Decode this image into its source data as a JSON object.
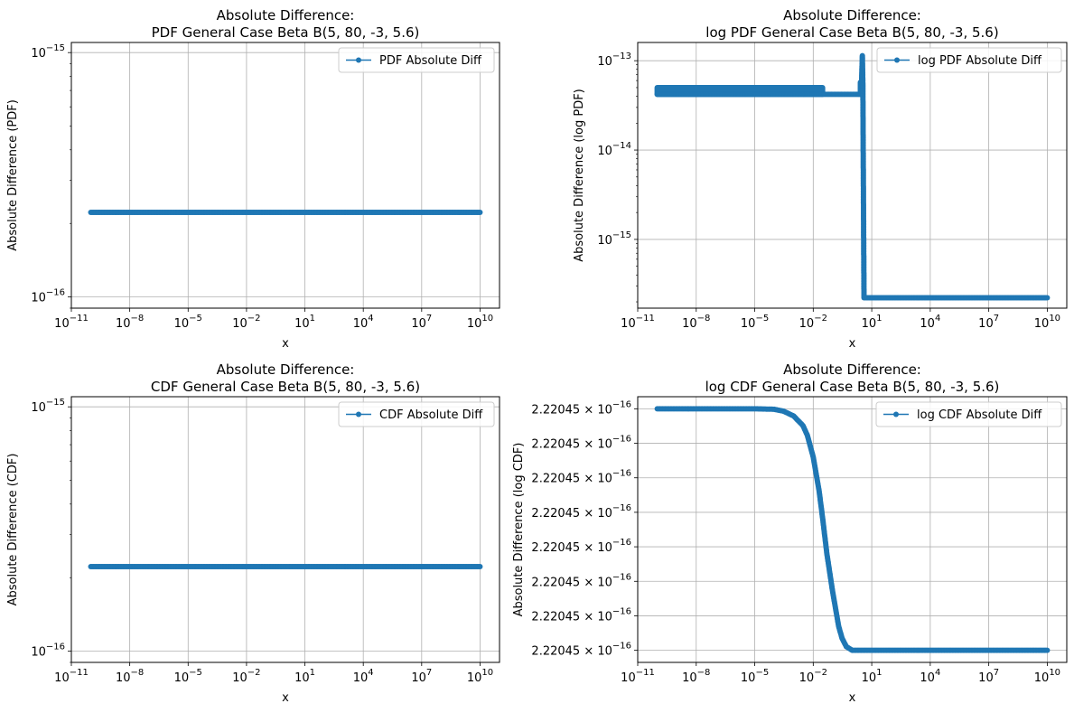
{
  "chart_data": [
    {
      "type": "line",
      "title": "Absolute Difference:\nPDF General Case Beta B(5, 80, -3, 5.6)",
      "xlabel": "x",
      "ylabel": "Absolute Difference (PDF)",
      "xscale": "log",
      "yscale": "log",
      "xlim": [
        1e-11,
        100000000000.0
      ],
      "ylim": [
        9e-17,
        1.1e-15
      ],
      "xticks": [
        1e-11,
        1e-08,
        1e-05,
        0.01,
        10.0,
        10000.0,
        10000000.0,
        10000000000.0
      ],
      "xtick_labels": [
        "10^-11",
        "10^-8",
        "10^-5",
        "10^-2",
        "10^1",
        "10^4",
        "10^7",
        "10^10"
      ],
      "yticks": [
        1e-16,
        1e-15
      ],
      "ytick_labels": [
        "10^-16",
        "10^-15"
      ],
      "grid": true,
      "legend_position": "upper right",
      "series": [
        {
          "name": "PDF Absolute Diff",
          "color": "#1f77b4",
          "marker": "dot",
          "x": [
            1e-10,
            1e-08,
            1e-06,
            0.0001,
            0.01,
            1,
            100.0,
            10000.0,
            1000000.0,
            100000000.0,
            10000000000.0
          ],
          "y": [
            2.22e-16,
            2.22e-16,
            2.22e-16,
            2.22e-16,
            2.22e-16,
            2.22e-16,
            2.22e-16,
            2.22e-16,
            2.22e-16,
            2.22e-16,
            2.22e-16
          ]
        }
      ]
    },
    {
      "type": "line",
      "title": "Absolute Difference:\nlog PDF General Case Beta B(5, 80, -3, 5.6)",
      "xlabel": "x",
      "ylabel": "Absolute Difference (log PDF)",
      "xscale": "log",
      "yscale": "log",
      "xlim": [
        1e-11,
        100000000000.0
      ],
      "ylim": [
        1.7e-16,
        1.6e-13
      ],
      "xticks": [
        1e-11,
        1e-08,
        1e-05,
        0.01,
        10.0,
        10000.0,
        10000000.0,
        10000000000.0
      ],
      "xtick_labels": [
        "10^-11",
        "10^-8",
        "10^-5",
        "10^-2",
        "10^1",
        "10^4",
        "10^7",
        "10^10"
      ],
      "yticks": [
        1e-15,
        1e-14,
        1e-13
      ],
      "ytick_labels": [
        "10^-15",
        "10^-14",
        "10^-13"
      ],
      "grid": true,
      "legend_position": "upper right",
      "band": {
        "x_start": 1e-10,
        "x_end": 0.03,
        "y_low": 4.2e-14,
        "y_high": 5e-14
      },
      "series": [
        {
          "name": "log PDF Absolute Diff",
          "color": "#1f77b4",
          "marker": "dot",
          "x": [
            1e-10,
            1e-06,
            0.001,
            0.03,
            0.1,
            0.5,
            2,
            2.6,
            2.6,
            3,
            3.3,
            3.5,
            4,
            10,
            1000.0,
            100000.0,
            10000000.0,
            10000000000.0
          ],
          "y": [
            4.2e-14,
            4.2e-14,
            4.2e-14,
            4.2e-14,
            4.2e-14,
            4.2e-14,
            4.2e-14,
            4.2e-14,
            5.7e-14,
            5.7e-14,
            1.14e-13,
            5.7e-14,
            2.22e-16,
            2.22e-16,
            2.22e-16,
            2.22e-16,
            2.22e-16,
            2.22e-16
          ]
        }
      ]
    },
    {
      "type": "line",
      "title": "Absolute Difference:\nCDF General Case Beta B(5, 80, -3, 5.6)",
      "xlabel": "x",
      "ylabel": "Absolute Difference (CDF)",
      "xscale": "log",
      "yscale": "log",
      "xlim": [
        1e-11,
        100000000000.0
      ],
      "ylim": [
        9e-17,
        1.1e-15
      ],
      "xticks": [
        1e-11,
        1e-08,
        1e-05,
        0.01,
        10.0,
        10000.0,
        10000000.0,
        10000000000.0
      ],
      "xtick_labels": [
        "10^-11",
        "10^-8",
        "10^-5",
        "10^-2",
        "10^1",
        "10^4",
        "10^7",
        "10^10"
      ],
      "yticks": [
        1e-16,
        1e-15
      ],
      "ytick_labels": [
        "10^-16",
        "10^-15"
      ],
      "grid": true,
      "legend_position": "upper right",
      "series": [
        {
          "name": "CDF Absolute Diff",
          "color": "#1f77b4",
          "marker": "dot",
          "x": [
            1e-10,
            1e-08,
            1e-06,
            0.0001,
            0.01,
            1,
            100.0,
            10000.0,
            1000000.0,
            100000000.0,
            10000000000.0
          ],
          "y": [
            2.22e-16,
            2.22e-16,
            2.22e-16,
            2.22e-16,
            2.22e-16,
            2.22e-16,
            2.22e-16,
            2.22e-16,
            2.22e-16,
            2.22e-16,
            2.22e-16
          ]
        }
      ]
    },
    {
      "type": "line",
      "title": "Absolute Difference:\nlog CDF General Case Beta B(5, 80, -3, 5.6)",
      "xlabel": "x",
      "ylabel": "Absolute Difference (log CDF)",
      "xscale": "log",
      "yscale": "linear",
      "xlim": [
        1e-11,
        100000000000.0
      ],
      "ylim": [
        -0.05,
        1.05
      ],
      "y_values_note": "tick values all display as 2.22045e-16; curve given as relative level from 0 (low plateau) to 1 (high plateau)",
      "xticks": [
        1e-11,
        1e-08,
        1e-05,
        0.01,
        10.0,
        10000.0,
        10000000.0,
        10000000000.0
      ],
      "xtick_labels": [
        "10^-11",
        "10^-8",
        "10^-5",
        "10^-2",
        "10^1",
        "10^4",
        "10^7",
        "10^10"
      ],
      "yticks": [
        0,
        0.1429,
        0.2857,
        0.4286,
        0.5714,
        0.7143,
        0.8571,
        1.0
      ],
      "ytick_labels": [
        "2.22045 × 10^-16",
        "2.22045 × 10^-16",
        "2.22045 × 10^-16",
        "2.22045 × 10^-16",
        "2.22045 × 10^-16",
        "2.22045 × 10^-16",
        "2.22045 × 10^-16",
        "2.22045 × 10^-16"
      ],
      "grid": true,
      "legend_position": "upper right",
      "series": [
        {
          "name": "log CDF Absolute Diff",
          "color": "#1f77b4",
          "marker": "dot",
          "x": [
            1e-10,
            1e-07,
            1e-05,
            0.0001,
            0.0003,
            0.001,
            0.003,
            0.005,
            0.01,
            0.02,
            0.03,
            0.05,
            0.1,
            0.2,
            0.3,
            0.5,
            1,
            10,
            1000.0,
            100000.0,
            10000000.0,
            10000000000.0
          ],
          "y": [
            1.0,
            1.0,
            1.0,
            0.998,
            0.99,
            0.97,
            0.93,
            0.89,
            0.8,
            0.66,
            0.55,
            0.4,
            0.24,
            0.1,
            0.05,
            0.015,
            0.0,
            0.0,
            0.0,
            0.0,
            0.0,
            0.0
          ]
        }
      ]
    }
  ]
}
